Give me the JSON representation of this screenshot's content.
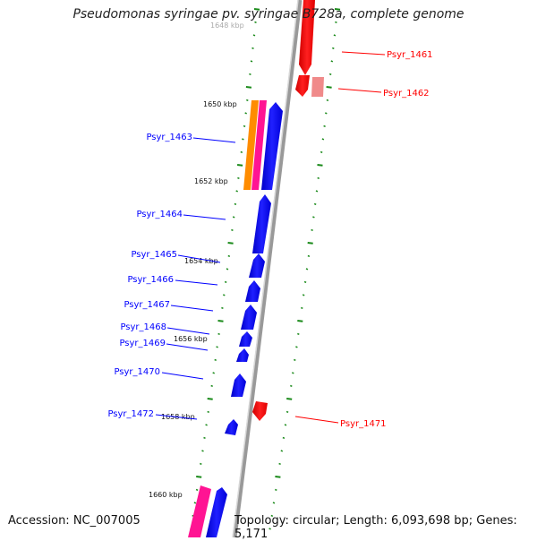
{
  "title": "Pseudomonas syringae pv. syringae B728a, complete genome",
  "accession_text": "Accession: NC_007005",
  "topology_text": "Topology: circular; Length: 6,093,698 bp; Genes: 5,171",
  "colors": {
    "forward": "#0000ff",
    "reverse": "#ff0000",
    "reverse_light": "#f08080",
    "orange": "#ff8c00",
    "pink": "#ff1493",
    "tick": "#1a8a1a",
    "backbone": "#888888"
  },
  "scale_labels": [
    "1648 kbp",
    "1650 kbp",
    "1652 kbp",
    "1654 kbp",
    "1656 kbp",
    "1658 kbp",
    "1660 kbp"
  ],
  "genes": [
    {
      "label": "Psyr_1461",
      "strand": "reverse"
    },
    {
      "label": "Psyr_1462",
      "strand": "reverse"
    },
    {
      "label": "Psyr_1463",
      "strand": "forward"
    },
    {
      "label": "Psyr_1464",
      "strand": "forward"
    },
    {
      "label": "Psyr_1465",
      "strand": "forward"
    },
    {
      "label": "Psyr_1466",
      "strand": "forward"
    },
    {
      "label": "Psyr_1467",
      "strand": "forward"
    },
    {
      "label": "Psyr_1468",
      "strand": "forward"
    },
    {
      "label": "Psyr_1469",
      "strand": "forward"
    },
    {
      "label": "Psyr_1470",
      "strand": "forward"
    },
    {
      "label": "Psyr_1471",
      "strand": "reverse"
    },
    {
      "label": "Psyr_1472",
      "strand": "forward"
    }
  ]
}
